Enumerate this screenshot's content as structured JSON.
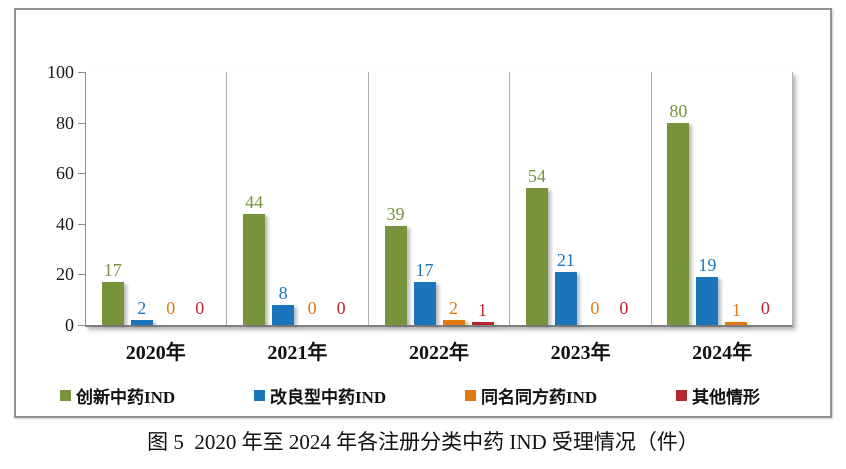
{
  "caption": "图 5  2020 年至 2024 年各注册分类中药 IND 受理情况（件）",
  "chart_data": {
    "type": "bar",
    "title": "",
    "xlabel": "",
    "ylabel": "",
    "categories": [
      "2020年",
      "2021年",
      "2022年",
      "2023年",
      "2024年"
    ],
    "series": [
      {
        "name": "创新中药IND",
        "color": "#77933C",
        "label_color": "#77933C",
        "values": [
          17,
          44,
          39,
          54,
          80
        ]
      },
      {
        "name": "改良型中药IND",
        "color": "#1B75BC",
        "label_color": "#1B75BC",
        "values": [
          2,
          8,
          17,
          21,
          19
        ]
      },
      {
        "name": "同名同方药IND",
        "color": "#E2790F",
        "label_color": "#E2790F",
        "values": [
          0,
          0,
          2,
          0,
          1
        ]
      },
      {
        "name": "其他情形",
        "color": "#B2282E",
        "label_color": "#C0272D",
        "values": [
          0,
          0,
          1,
          0,
          0
        ]
      }
    ],
    "ylim": [
      0,
      100
    ],
    "yticks": [
      0,
      20,
      40,
      60,
      80,
      100
    ],
    "grid": "vertical-category-separators-only",
    "legend_position": "bottom",
    "value_labels": true
  }
}
